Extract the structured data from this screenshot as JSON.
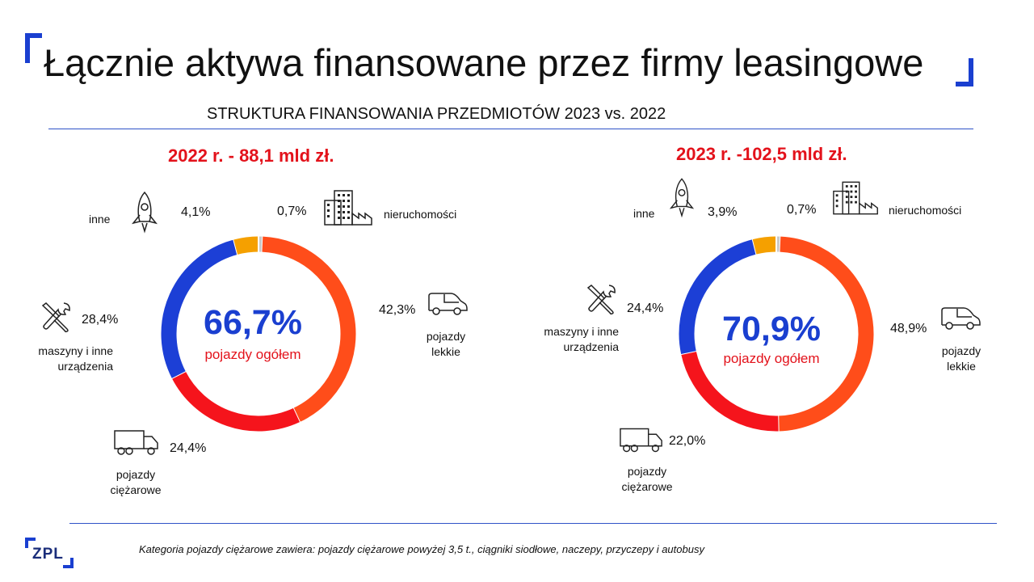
{
  "colors": {
    "accent_blue": "#1a3fd0",
    "rule_blue": "#2f53c8",
    "red_title": "#e3121b",
    "seg_lekkie": "#ff4d1a",
    "seg_ciezarowe": "#f5141c",
    "seg_maszyny": "#1c3fd6",
    "seg_inne": "#f5a000",
    "seg_nieruchomosci": "#c9c9c9"
  },
  "header": {
    "title": "Łącznie aktywa finansowane przez firmy leasingowe",
    "subtitle": "STRUKTURA FINANSOWANIA PRZEDMIOTÓW 2023 vs. 2022"
  },
  "footer": {
    "footnote": "Kategoria pojazdy ciężarowe zawiera: pojazdy ciężarowe powyżej 3,5 t., ciągniki siodłowe, naczepy, przyczepy i autobusy",
    "logo_text": "ZPL"
  },
  "panels": [
    {
      "title": "2022 r. - 88,1 mld zł.",
      "center_value": "66,7%",
      "center_label": "pojazdy ogółem",
      "labels": {
        "inne": "inne",
        "nieruchomosci": "nieruchomości",
        "lekkie": "pojazdy lekkie",
        "maszyny": "maszyny i inne urządzenia",
        "ciezarowe": "pojazdy ciężarowe"
      },
      "values_text": {
        "inne": "4,1%",
        "nieruchomosci": "0,7%",
        "lekkie": "42,3%",
        "maszyny": "28,4%",
        "ciezarowe": "24,4%"
      }
    },
    {
      "title": "2023 r. -102,5 mld zł.",
      "center_value": "70,9%",
      "center_label": "pojazdy ogółem",
      "labels": {
        "inne": "inne",
        "nieruchomosci": "nieruchomości",
        "lekkie": "pojazdy lekkie",
        "maszyny": "maszyny i inne urządzenia",
        "ciezarowe": "pojazdy ciężarowe"
      },
      "values_text": {
        "inne": "3,9%",
        "nieruchomosci": "0,7%",
        "lekkie": "48,9%",
        "maszyny": "24,4%",
        "ciezarowe": "22,0%"
      }
    }
  ],
  "chart_data": [
    {
      "type": "pie",
      "title": "2022 r. - 88,1 mld zł.",
      "categories": [
        "nieruchomości",
        "pojazdy lekkie",
        "pojazdy ciężarowe",
        "maszyny i inne urządzenia",
        "inne"
      ],
      "values": [
        0.7,
        42.3,
        24.4,
        28.4,
        4.1
      ],
      "center_text": "66,7% pojazdy ogółem"
    },
    {
      "type": "pie",
      "title": "2023 r. -102,5 mld zł.",
      "categories": [
        "nieruchomości",
        "pojazdy lekkie",
        "pojazdy ciężarowe",
        "maszyny i inne urządzenia",
        "inne"
      ],
      "values": [
        0.7,
        48.9,
        22.0,
        24.4,
        3.9
      ],
      "center_text": "70,9% pojazdy ogółem"
    }
  ]
}
